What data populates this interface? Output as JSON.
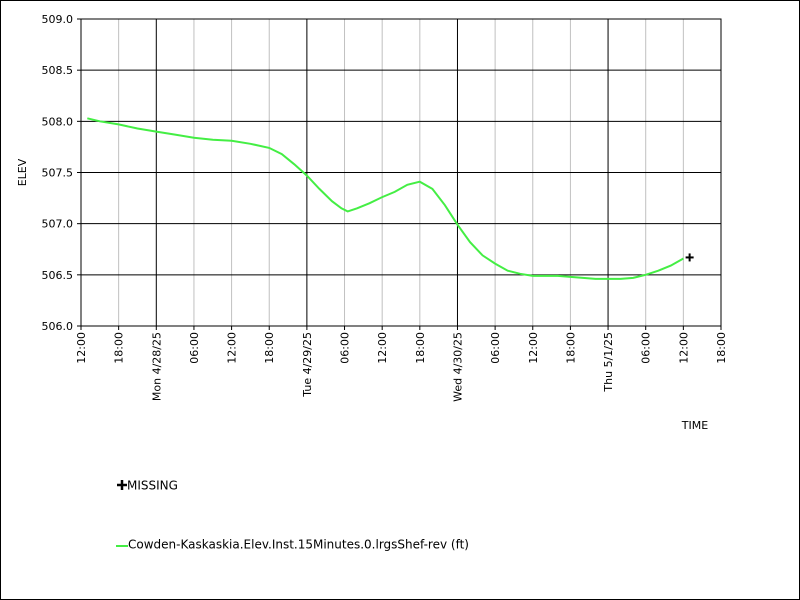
{
  "chart_data": {
    "type": "line",
    "title": "",
    "ylabel": "ELEV",
    "xlabel": "TIME",
    "ylim": [
      506.0,
      509.0
    ],
    "yticks": [
      506.0,
      506.5,
      507.0,
      507.5,
      508.0,
      508.5,
      509.0
    ],
    "xlim_hours": [
      0,
      102
    ],
    "xticks": [
      {
        "label": "12:00",
        "hour": 0,
        "major": false
      },
      {
        "label": "18:00",
        "hour": 6,
        "major": false
      },
      {
        "label": "Mon 4/28/25",
        "hour": 12,
        "major": true
      },
      {
        "label": "06:00",
        "hour": 18,
        "major": false
      },
      {
        "label": "12:00",
        "hour": 24,
        "major": false
      },
      {
        "label": "18:00",
        "hour": 30,
        "major": false
      },
      {
        "label": "Tue 4/29/25",
        "hour": 36,
        "major": true
      },
      {
        "label": "06:00",
        "hour": 42,
        "major": false
      },
      {
        "label": "12:00",
        "hour": 48,
        "major": false
      },
      {
        "label": "18:00",
        "hour": 54,
        "major": false
      },
      {
        "label": "Wed 4/30/25",
        "hour": 60,
        "major": true
      },
      {
        "label": "06:00",
        "hour": 66,
        "major": false
      },
      {
        "label": "12:00",
        "hour": 72,
        "major": false
      },
      {
        "label": "18:00",
        "hour": 78,
        "major": false
      },
      {
        "label": "Thu 5/1/25",
        "hour": 84,
        "major": true
      },
      {
        "label": "06:00",
        "hour": 90,
        "major": false
      },
      {
        "label": "12:00",
        "hour": 96,
        "major": false
      },
      {
        "label": "18:00",
        "hour": 102,
        "major": false
      }
    ],
    "grid": true,
    "series": [
      {
        "name": "Cowden-Kaskaskia.Elev.Inst.15Minutes.0.lrgsShef-rev (ft)",
        "color": "#44ee44",
        "x": [
          1,
          3,
          6,
          9,
          12,
          15,
          18,
          21,
          24,
          27,
          30,
          32,
          34,
          36,
          38,
          40,
          41.5,
          42.5,
          44,
          46,
          48,
          50,
          52,
          54,
          56,
          58,
          60,
          62,
          64,
          66,
          68,
          70,
          72,
          74,
          76,
          78,
          80,
          82,
          84,
          86,
          88,
          90,
          92,
          94,
          96
        ],
        "y": [
          508.03,
          508.0,
          507.97,
          507.93,
          507.9,
          507.87,
          507.84,
          507.82,
          507.81,
          507.78,
          507.74,
          507.68,
          507.58,
          507.47,
          507.34,
          507.22,
          507.15,
          507.12,
          507.15,
          507.2,
          507.26,
          507.31,
          507.38,
          507.41,
          507.34,
          507.18,
          506.99,
          506.82,
          506.69,
          506.61,
          506.54,
          506.51,
          506.49,
          506.49,
          506.49,
          506.48,
          506.47,
          506.46,
          506.46,
          506.46,
          506.47,
          506.5,
          506.54,
          506.59,
          506.66
        ]
      }
    ],
    "missing": {
      "label": "MISSING",
      "x": [
        97
      ],
      "y": [
        506.67
      ]
    },
    "legend_position": "bottom-left"
  }
}
